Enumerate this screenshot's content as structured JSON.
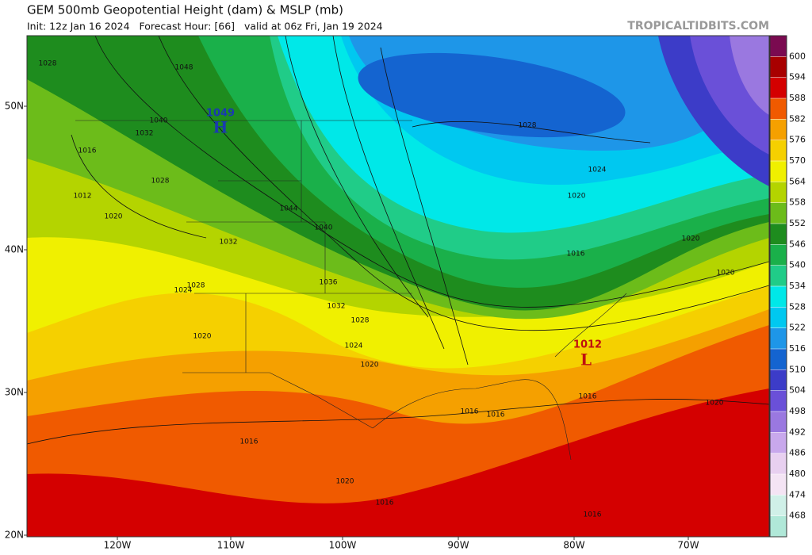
{
  "header": {
    "title": "GEM 500mb Geopotential Height (dam) & MSLP (mb)",
    "subtitle": "Init: 12z Jan 16 2024   Forecast Hour: [66]   valid at 06z Fri, Jan 19 2024",
    "watermark": "TROPICALTIDBITS.COM"
  },
  "axes": {
    "lat_labels": [
      "50N",
      "40N",
      "30N",
      "20N"
    ],
    "lon_labels": [
      "120W",
      "110W",
      "100W",
      "90W",
      "80W",
      "70W"
    ]
  },
  "colorbar": {
    "levels": [
      600,
      594,
      588,
      582,
      576,
      570,
      564,
      558,
      552,
      546,
      540,
      534,
      528,
      522,
      516,
      510,
      504,
      498,
      492,
      486,
      480,
      474,
      468
    ],
    "colors": [
      "#7a0a50",
      "#a80000",
      "#d40000",
      "#f05a00",
      "#f5a000",
      "#f5d000",
      "#f0f000",
      "#b4d400",
      "#6cbc1a",
      "#1e8c1e",
      "#1ab04a",
      "#20cc88",
      "#00e8e8",
      "#00c8f0",
      "#1e96e8",
      "#1464d0",
      "#3c3cc8",
      "#6a50d8",
      "#9a78e0",
      "#c8a8ec",
      "#e8d0f0",
      "#f4e4f4",
      "#d0f0e8",
      "#b0e8d8"
    ]
  },
  "isobar_labels": [
    "1028",
    "1048",
    "1032",
    "1040",
    "1016",
    "1028",
    "1012",
    "1020",
    "1044",
    "1040",
    "1032",
    "1028",
    "1024",
    "1036",
    "1032",
    "1028",
    "1024",
    "1020",
    "1020",
    "1028",
    "1024",
    "1020",
    "1016",
    "1020",
    "1020",
    "1016",
    "1016",
    "1016",
    "1020",
    "1016",
    "1020",
    "1016",
    "1016"
  ],
  "highs": [
    {
      "value": "1049",
      "symbol": "H"
    }
  ],
  "lows": [
    {
      "value": "1012",
      "symbol": "L"
    }
  ]
}
